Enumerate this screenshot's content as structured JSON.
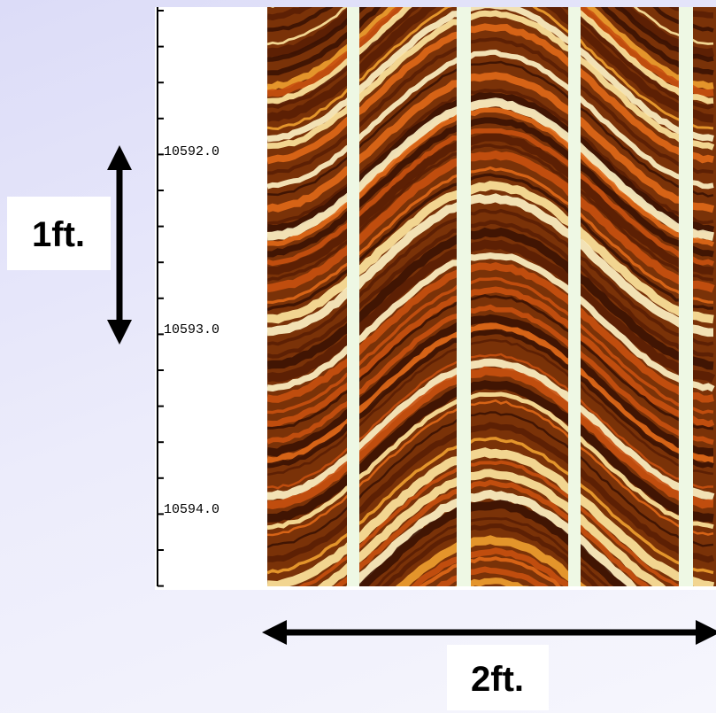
{
  "depth_track": {
    "labels": [
      "10592.0",
      "10593.0",
      "10594.0"
    ]
  },
  "annotations": {
    "vertical_scale": "1ft.",
    "horizontal_scale": "2ft."
  }
}
